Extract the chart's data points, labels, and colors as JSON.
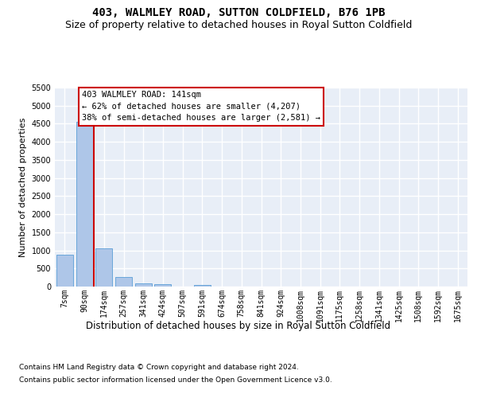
{
  "title": "403, WALMLEY ROAD, SUTTON COLDFIELD, B76 1PB",
  "subtitle": "Size of property relative to detached houses in Royal Sutton Coldfield",
  "xlabel": "Distribution of detached houses by size in Royal Sutton Coldfield",
  "ylabel": "Number of detached properties",
  "footer_line1": "Contains HM Land Registry data © Crown copyright and database right 2024.",
  "footer_line2": "Contains public sector information licensed under the Open Government Licence v3.0.",
  "annotation_title": "403 WALMLEY ROAD: 141sqm",
  "annotation_line2": "← 62% of detached houses are smaller (4,207)",
  "annotation_line3": "38% of semi-detached houses are larger (2,581) →",
  "bar_categories": [
    "7sqm",
    "90sqm",
    "174sqm",
    "257sqm",
    "341sqm",
    "424sqm",
    "507sqm",
    "591sqm",
    "674sqm",
    "758sqm",
    "841sqm",
    "924sqm",
    "1008sqm",
    "1091sqm",
    "1175sqm",
    "1258sqm",
    "1341sqm",
    "1425sqm",
    "1508sqm",
    "1592sqm",
    "1675sqm"
  ],
  "bar_values": [
    880,
    4550,
    1060,
    270,
    80,
    70,
    0,
    50,
    0,
    0,
    0,
    0,
    0,
    0,
    0,
    0,
    0,
    0,
    0,
    0,
    0
  ],
  "bar_color": "#aec6e8",
  "bar_edge_color": "#5a9ed6",
  "vline_x": 1.5,
  "vline_color": "#cc0000",
  "ylim_max": 5500,
  "yticks": [
    0,
    500,
    1000,
    1500,
    2000,
    2500,
    3000,
    3500,
    4000,
    4500,
    5000,
    5500
  ],
  "bg_color": "#e8eef7",
  "grid_color": "#ffffff",
  "title_fontsize": 10,
  "subtitle_fontsize": 9,
  "ylabel_fontsize": 8,
  "xlabel_fontsize": 8.5,
  "tick_fontsize": 7,
  "annotation_fontsize": 7.5,
  "footer_fontsize": 6.5
}
